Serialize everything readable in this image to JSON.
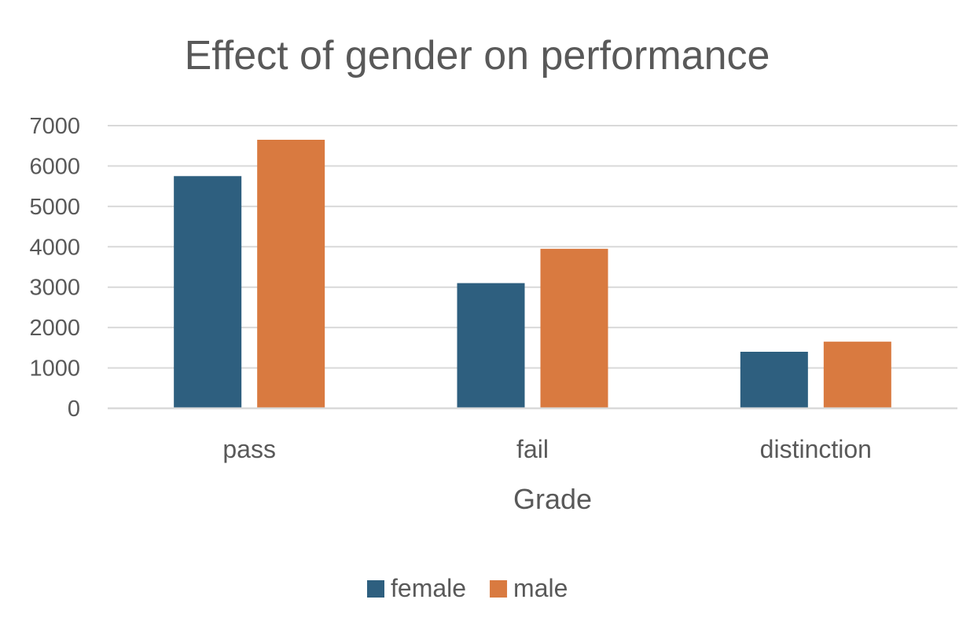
{
  "chart_data": {
    "type": "bar",
    "title": "Effect of gender on performance",
    "xlabel": "Grade",
    "ylabel": "",
    "categories": [
      "pass",
      "fail",
      "distinction"
    ],
    "series": [
      {
        "name": "female",
        "values": [
          5750,
          3100,
          1400
        ]
      },
      {
        "name": "male",
        "values": [
          6650,
          3950,
          1650
        ]
      }
    ],
    "colors": {
      "female": "#2e5f7f",
      "male": "#d97a40"
    },
    "ylim": [
      0,
      7000
    ],
    "yticks": [
      0,
      1000,
      2000,
      3000,
      4000,
      5000,
      6000,
      7000
    ],
    "grid": true,
    "legend_position": "bottom"
  }
}
